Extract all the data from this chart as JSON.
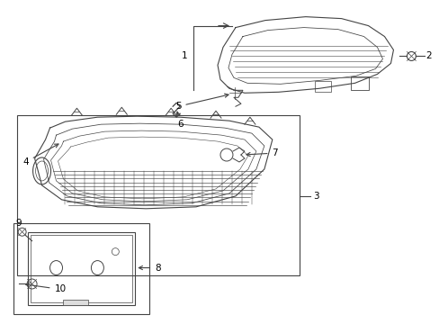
{
  "bg_color": "#ffffff",
  "line_color": "#444444",
  "label_color": "#000000",
  "lw": 0.8
}
